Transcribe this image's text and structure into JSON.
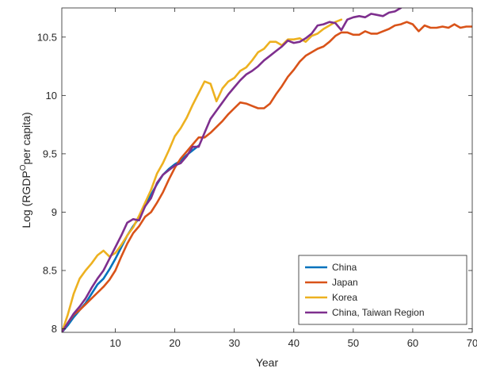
{
  "chart_data": {
    "type": "line",
    "title": "",
    "xlabel": "Year",
    "ylabel": "Log (RGDP",
    "ylabel_sup": "O",
    "ylabel_tail": "per capita)",
    "xlim": [
      1,
      70
    ],
    "ylim": [
      7.97,
      10.75
    ],
    "xticks": [
      10,
      20,
      30,
      40,
      50,
      60,
      70
    ],
    "xtick_labels": [
      "10",
      "20",
      "30",
      "40",
      "50",
      "60",
      "70"
    ],
    "yticks": [
      8,
      8.5,
      9,
      9.5,
      10,
      10.5
    ],
    "ytick_labels": [
      "8",
      "8.5",
      "9",
      "9.5",
      "10",
      "10.5"
    ],
    "grid": false,
    "legend_position": "bottom-right",
    "series": [
      {
        "name": "China",
        "color": "#0072BD",
        "x": [
          1,
          2,
          3,
          4,
          5,
          6,
          7,
          8,
          9,
          10,
          11,
          12,
          13,
          14,
          15,
          16,
          17,
          18,
          19,
          20,
          21,
          22,
          23,
          24
        ],
        "y": [
          7.97,
          8.03,
          8.1,
          8.16,
          8.22,
          8.3,
          8.38,
          8.43,
          8.51,
          8.6,
          8.7,
          8.8,
          8.88,
          8.95,
          9.05,
          9.15,
          9.24,
          9.32,
          9.37,
          9.41,
          9.44,
          9.49,
          9.53,
          9.57
        ]
      },
      {
        "name": "Japan",
        "color": "#D95319",
        "x": [
          1,
          2,
          3,
          4,
          5,
          6,
          7,
          8,
          9,
          10,
          11,
          12,
          13,
          14,
          15,
          16,
          17,
          18,
          19,
          20,
          21,
          22,
          23,
          24,
          25,
          26,
          27,
          28,
          29,
          30,
          31,
          32,
          33,
          34,
          35,
          36,
          37,
          38,
          39,
          40,
          41,
          42,
          43,
          44,
          45,
          46,
          47,
          48,
          49,
          50,
          51,
          52,
          53,
          54,
          55,
          56,
          57,
          58,
          59,
          60,
          61,
          62,
          63,
          64,
          65,
          66,
          67,
          68,
          69,
          70
        ],
        "y": [
          7.97,
          8.05,
          8.12,
          8.16,
          8.21,
          8.26,
          8.31,
          8.36,
          8.42,
          8.5,
          8.62,
          8.73,
          8.82,
          8.88,
          8.96,
          9.0,
          9.08,
          9.17,
          9.28,
          9.38,
          9.46,
          9.52,
          9.58,
          9.64,
          9.64,
          9.68,
          9.73,
          9.78,
          9.84,
          9.89,
          9.94,
          9.93,
          9.91,
          9.89,
          9.89,
          9.93,
          10.01,
          10.08,
          10.16,
          10.22,
          10.29,
          10.34,
          10.37,
          10.4,
          10.42,
          10.46,
          10.51,
          10.54,
          10.54,
          10.52,
          10.52,
          10.55,
          10.53,
          10.53,
          10.55,
          10.57,
          10.6,
          10.61,
          10.63,
          10.61,
          10.55,
          10.6,
          10.58,
          10.58,
          10.59,
          10.58,
          10.61,
          10.58,
          10.59,
          10.59
        ]
      },
      {
        "name": "Korea",
        "color": "#EDB120",
        "x": [
          1,
          2,
          3,
          4,
          5,
          6,
          7,
          8,
          9,
          10,
          11,
          12,
          13,
          14,
          15,
          16,
          17,
          18,
          19,
          20,
          21,
          22,
          23,
          24,
          25,
          26,
          27,
          28,
          29,
          30,
          31,
          32,
          33,
          34,
          35,
          36,
          37,
          38,
          39,
          40,
          41,
          42,
          43,
          44,
          45,
          46,
          47,
          48
        ],
        "y": [
          7.97,
          8.12,
          8.3,
          8.43,
          8.5,
          8.56,
          8.63,
          8.67,
          8.62,
          8.65,
          8.72,
          8.8,
          8.87,
          8.97,
          9.08,
          9.19,
          9.33,
          9.42,
          9.53,
          9.65,
          9.72,
          9.81,
          9.92,
          10.02,
          10.12,
          10.1,
          9.95,
          10.06,
          10.12,
          10.15,
          10.21,
          10.24,
          10.3,
          10.37,
          10.4,
          10.46,
          10.46,
          10.43,
          10.48,
          10.48,
          10.49,
          10.46,
          10.51,
          10.53,
          10.57,
          10.6,
          10.63,
          10.65
        ]
      },
      {
        "name": "China, Taiwan Region",
        "color": "#7E2F8E",
        "x": [
          1,
          2,
          3,
          4,
          5,
          6,
          7,
          8,
          9,
          10,
          11,
          12,
          13,
          14,
          15,
          16,
          17,
          18,
          19,
          20,
          21,
          22,
          23,
          24,
          25,
          26,
          27,
          28,
          29,
          30,
          31,
          32,
          33,
          34,
          35,
          36,
          37,
          38,
          39,
          40,
          41,
          42,
          43,
          44,
          45,
          46,
          47,
          48,
          49,
          50,
          51,
          52,
          53,
          54,
          55,
          56,
          57,
          58
        ],
        "y": [
          7.97,
          8.05,
          8.13,
          8.19,
          8.26,
          8.35,
          8.43,
          8.5,
          8.6,
          8.7,
          8.8,
          8.91,
          8.94,
          8.93,
          9.05,
          9.12,
          9.25,
          9.32,
          9.36,
          9.4,
          9.42,
          9.48,
          9.56,
          9.56,
          9.68,
          9.8,
          9.87,
          9.94,
          10.01,
          10.07,
          10.13,
          10.18,
          10.21,
          10.25,
          10.3,
          10.34,
          10.38,
          10.42,
          10.47,
          10.45,
          10.46,
          10.49,
          10.53,
          10.6,
          10.61,
          10.63,
          10.62,
          10.56,
          10.65,
          10.67,
          10.68,
          10.67,
          10.7,
          10.69,
          10.68,
          10.71,
          10.72,
          10.75
        ]
      }
    ]
  }
}
